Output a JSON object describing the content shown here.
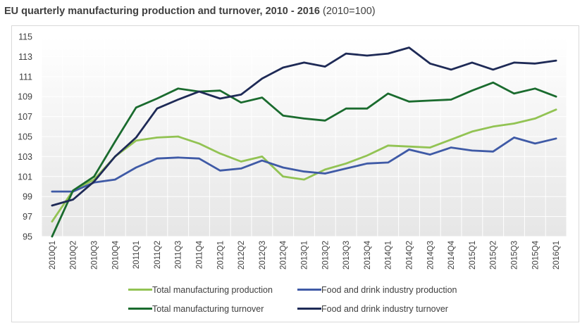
{
  "header": {
    "title_main": "EU quarterly manufacturing production and turnover, 2010 - 2016",
    "title_sub": " (2010=100)"
  },
  "chart_data": {
    "type": "line",
    "title": "EU quarterly manufacturing production and turnover, 2010 - 2016 (2010=100)",
    "xlabel": "",
    "ylabel": "",
    "ylim": [
      95,
      115
    ],
    "yticks": [
      "95",
      "97",
      "99",
      "101",
      "103",
      "105",
      "107",
      "109",
      "111",
      "113",
      "115"
    ],
    "grid": "horizontal",
    "legend_position": "bottom",
    "categories": [
      "2010Q1",
      "2010Q2",
      "2010Q3",
      "2010Q4",
      "2011Q1",
      "2011Q2",
      "2011Q3",
      "2011Q4",
      "2012Q1",
      "2012Q2",
      "2012Q3",
      "2012Q4",
      "2013Q1",
      "2013Q2",
      "2013Q3",
      "2013Q4",
      "2014Q1",
      "2014Q2",
      "2014Q3",
      "2014Q4",
      "2015Q1",
      "2015Q2",
      "2015Q3",
      "2015Q4",
      "2016Q1"
    ],
    "series": [
      {
        "name": "Total manufacturing production",
        "color": "#92c353",
        "values": [
          96.5,
          99.6,
          100.7,
          103.0,
          104.6,
          104.9,
          105.0,
          104.3,
          103.3,
          102.5,
          103.0,
          101.0,
          100.7,
          101.7,
          102.3,
          103.1,
          104.1,
          104.0,
          103.9,
          104.7,
          105.5,
          106.0,
          106.3,
          106.8,
          107.7
        ]
      },
      {
        "name": "Food and drink industry production",
        "color": "#3f5aa6",
        "values": [
          99.5,
          99.5,
          100.4,
          100.7,
          101.9,
          102.8,
          102.9,
          102.8,
          101.6,
          101.8,
          102.6,
          101.9,
          101.5,
          101.3,
          101.8,
          102.3,
          102.4,
          103.7,
          103.2,
          103.9,
          103.6,
          103.5,
          104.9,
          104.3,
          104.8
        ]
      },
      {
        "name": "Total manufacturing turnover",
        "color": "#1a6b2e",
        "values": [
          95.0,
          99.6,
          101.0,
          104.5,
          107.9,
          108.8,
          109.8,
          109.5,
          109.6,
          108.4,
          108.9,
          107.1,
          106.8,
          106.6,
          107.8,
          107.8,
          109.3,
          108.5,
          108.6,
          108.7,
          109.6,
          110.4,
          109.3,
          109.8,
          109.0
        ]
      },
      {
        "name": "Food and drink industry turnover",
        "color": "#1e2a56",
        "values": [
          98.1,
          98.7,
          100.5,
          103.0,
          104.9,
          107.8,
          108.7,
          109.5,
          108.8,
          109.2,
          110.8,
          111.9,
          112.4,
          112.0,
          113.3,
          113.1,
          113.3,
          113.9,
          112.3,
          111.7,
          112.4,
          111.7,
          112.4,
          112.3,
          112.6
        ]
      }
    ]
  }
}
